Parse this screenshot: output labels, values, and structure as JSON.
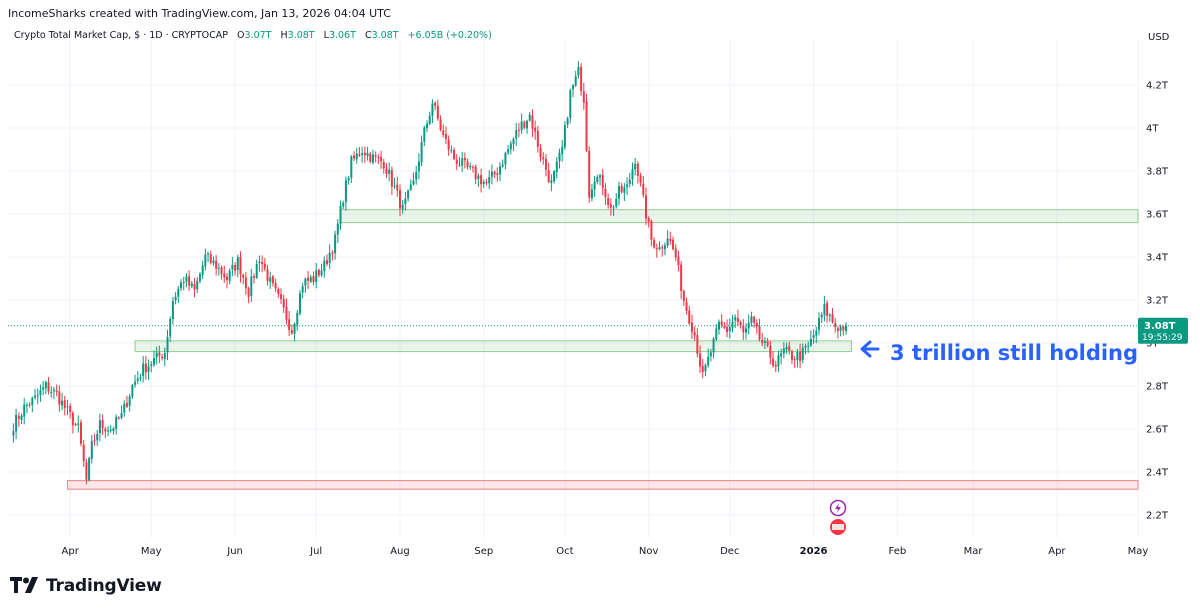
{
  "header": {
    "credit": "IncomeSharks created with TradingView.com, Jan 13, 2026 04:04 UTC"
  },
  "legend": {
    "symbol": "Crypto Total Market Cap, $ · 1D · CRYPTOCAP",
    "o_label": "O",
    "o_value": "3.07T",
    "h_label": "H",
    "h_value": "3.08T",
    "l_label": "L",
    "l_value": "3.06T",
    "c_label": "C",
    "c_value": "3.08T",
    "change": "+6.05B (+0.20%)"
  },
  "price_badge": {
    "price": "3.08T",
    "countdown": "19:55:29",
    "color": "#089981"
  },
  "annotation": {
    "text": "3 trillion still holding",
    "color": "#2962ff"
  },
  "brand": {
    "name": "TradingView"
  },
  "colors": {
    "up": "#089981",
    "down": "#f23645",
    "zone_green": "#4caf50",
    "zone_red": "#f23645"
  },
  "chart_data": {
    "type": "candlestick",
    "currency": "USD",
    "y_ticks": [
      {
        "v": 2.2,
        "label": "2.2T"
      },
      {
        "v": 2.4,
        "label": "2.4T"
      },
      {
        "v": 2.6,
        "label": "2.6T"
      },
      {
        "v": 2.8,
        "label": "2.8T"
      },
      {
        "v": 3.0,
        "label": "3T"
      },
      {
        "v": 3.2,
        "label": "3.2T"
      },
      {
        "v": 3.4,
        "label": "3.4T"
      },
      {
        "v": 3.6,
        "label": "3.6T"
      },
      {
        "v": 3.8,
        "label": "3.8T"
      },
      {
        "v": 4.0,
        "label": "4T"
      },
      {
        "v": 4.2,
        "label": "4.2T"
      }
    ],
    "x_ticks": [
      {
        "date": "2025-04-01",
        "label": "Apr",
        "bold": false
      },
      {
        "date": "2025-05-01",
        "label": "May",
        "bold": false
      },
      {
        "date": "2025-06-01",
        "label": "Jun",
        "bold": false
      },
      {
        "date": "2025-07-01",
        "label": "Jul",
        "bold": false
      },
      {
        "date": "2025-08-01",
        "label": "Aug",
        "bold": false
      },
      {
        "date": "2025-09-01",
        "label": "Sep",
        "bold": false
      },
      {
        "date": "2025-10-01",
        "label": "Oct",
        "bold": false
      },
      {
        "date": "2025-11-01",
        "label": "Nov",
        "bold": false
      },
      {
        "date": "2025-12-01",
        "label": "Dec",
        "bold": false
      },
      {
        "date": "2026-01-01",
        "label": "2026",
        "bold": true
      },
      {
        "date": "2026-02-01",
        "label": "Feb",
        "bold": false
      },
      {
        "date": "2026-03-01",
        "label": "Mar",
        "bold": false
      },
      {
        "date": "2026-04-01",
        "label": "Apr",
        "bold": false
      },
      {
        "date": "2026-05-01",
        "label": "May",
        "bold": false
      }
    ],
    "zones": [
      {
        "from_date": "2025-07-10",
        "to_date": "2026-05-01",
        "low": 3.56,
        "high": 3.62,
        "color": "green"
      },
      {
        "from_date": "2025-04-25",
        "to_date": "2026-01-15",
        "low": 2.96,
        "high": 3.01,
        "color": "green"
      },
      {
        "from_date": "2025-03-31",
        "to_date": "2026-05-01",
        "low": 2.32,
        "high": 2.36,
        "color": "red"
      }
    ],
    "last_price": 3.08,
    "series": [
      {
        "date": "2025-03-11",
        "close": 2.62
      },
      {
        "date": "2025-03-15",
        "close": 2.7
      },
      {
        "date": "2025-03-19",
        "close": 2.74
      },
      {
        "date": "2025-03-23",
        "close": 2.8
      },
      {
        "date": "2025-03-27",
        "close": 2.76
      },
      {
        "date": "2025-03-31",
        "close": 2.68
      },
      {
        "date": "2025-04-04",
        "close": 2.6
      },
      {
        "date": "2025-04-07",
        "close": 2.36
      },
      {
        "date": "2025-04-09",
        "close": 2.52
      },
      {
        "date": "2025-04-12",
        "close": 2.62
      },
      {
        "date": "2025-04-16",
        "close": 2.6
      },
      {
        "date": "2025-04-20",
        "close": 2.66
      },
      {
        "date": "2025-04-24",
        "close": 2.8
      },
      {
        "date": "2025-04-28",
        "close": 2.88
      },
      {
        "date": "2025-05-02",
        "close": 2.92
      },
      {
        "date": "2025-05-06",
        "close": 2.96
      },
      {
        "date": "2025-05-09",
        "close": 3.2
      },
      {
        "date": "2025-05-13",
        "close": 3.3
      },
      {
        "date": "2025-05-17",
        "close": 3.24
      },
      {
        "date": "2025-05-21",
        "close": 3.4
      },
      {
        "date": "2025-05-25",
        "close": 3.36
      },
      {
        "date": "2025-05-29",
        "close": 3.3
      },
      {
        "date": "2025-06-02",
        "close": 3.38
      },
      {
        "date": "2025-06-06",
        "close": 3.24
      },
      {
        "date": "2025-06-10",
        "close": 3.4
      },
      {
        "date": "2025-06-14",
        "close": 3.28
      },
      {
        "date": "2025-06-18",
        "close": 3.18
      },
      {
        "date": "2025-06-22",
        "close": 3.06
      },
      {
        "date": "2025-06-26",
        "close": 3.28
      },
      {
        "date": "2025-06-30",
        "close": 3.3
      },
      {
        "date": "2025-07-04",
        "close": 3.36
      },
      {
        "date": "2025-07-08",
        "close": 3.48
      },
      {
        "date": "2025-07-11",
        "close": 3.68
      },
      {
        "date": "2025-07-14",
        "close": 3.84
      },
      {
        "date": "2025-07-18",
        "close": 3.9
      },
      {
        "date": "2025-07-22",
        "close": 3.86
      },
      {
        "date": "2025-07-26",
        "close": 3.84
      },
      {
        "date": "2025-07-30",
        "close": 3.72
      },
      {
        "date": "2025-08-02",
        "close": 3.62
      },
      {
        "date": "2025-08-06",
        "close": 3.74
      },
      {
        "date": "2025-08-10",
        "close": 3.98
      },
      {
        "date": "2025-08-13",
        "close": 4.12
      },
      {
        "date": "2025-08-17",
        "close": 3.96
      },
      {
        "date": "2025-08-21",
        "close": 3.86
      },
      {
        "date": "2025-08-25",
        "close": 3.82
      },
      {
        "date": "2025-08-29",
        "close": 3.78
      },
      {
        "date": "2025-09-02",
        "close": 3.74
      },
      {
        "date": "2025-09-06",
        "close": 3.8
      },
      {
        "date": "2025-09-10",
        "close": 3.9
      },
      {
        "date": "2025-09-14",
        "close": 4.0
      },
      {
        "date": "2025-09-18",
        "close": 4.06
      },
      {
        "date": "2025-09-22",
        "close": 3.88
      },
      {
        "date": "2025-09-26",
        "close": 3.74
      },
      {
        "date": "2025-09-30",
        "close": 3.9
      },
      {
        "date": "2025-10-03",
        "close": 4.16
      },
      {
        "date": "2025-10-06",
        "close": 4.26
      },
      {
        "date": "2025-10-08",
        "close": 4.14
      },
      {
        "date": "2025-10-10",
        "close": 3.7
      },
      {
        "date": "2025-10-12",
        "close": 3.78
      },
      {
        "date": "2025-10-15",
        "close": 3.74
      },
      {
        "date": "2025-10-18",
        "close": 3.62
      },
      {
        "date": "2025-10-21",
        "close": 3.7
      },
      {
        "date": "2025-10-24",
        "close": 3.72
      },
      {
        "date": "2025-10-27",
        "close": 3.86
      },
      {
        "date": "2025-10-30",
        "close": 3.66
      },
      {
        "date": "2025-11-02",
        "close": 3.48
      },
      {
        "date": "2025-11-05",
        "close": 3.44
      },
      {
        "date": "2025-11-08",
        "close": 3.5
      },
      {
        "date": "2025-11-11",
        "close": 3.4
      },
      {
        "date": "2025-11-14",
        "close": 3.2
      },
      {
        "date": "2025-11-18",
        "close": 3.04
      },
      {
        "date": "2025-11-21",
        "close": 2.84
      },
      {
        "date": "2025-11-24",
        "close": 2.96
      },
      {
        "date": "2025-11-27",
        "close": 3.08
      },
      {
        "date": "2025-11-30",
        "close": 3.06
      },
      {
        "date": "2025-12-03",
        "close": 3.12
      },
      {
        "date": "2025-12-06",
        "close": 3.04
      },
      {
        "date": "2025-12-09",
        "close": 3.1
      },
      {
        "date": "2025-12-12",
        "close": 3.02
      },
      {
        "date": "2025-12-15",
        "close": 2.96
      },
      {
        "date": "2025-12-18",
        "close": 2.9
      },
      {
        "date": "2025-12-21",
        "close": 2.96
      },
      {
        "date": "2025-12-24",
        "close": 2.94
      },
      {
        "date": "2025-12-27",
        "close": 2.94
      },
      {
        "date": "2025-12-30",
        "close": 2.98
      },
      {
        "date": "2026-01-02",
        "close": 3.06
      },
      {
        "date": "2026-01-05",
        "close": 3.16
      },
      {
        "date": "2026-01-07",
        "close": 3.12
      },
      {
        "date": "2026-01-09",
        "close": 3.08
      },
      {
        "date": "2026-01-11",
        "close": 3.07
      },
      {
        "date": "2026-01-13",
        "close": 3.08
      }
    ]
  }
}
